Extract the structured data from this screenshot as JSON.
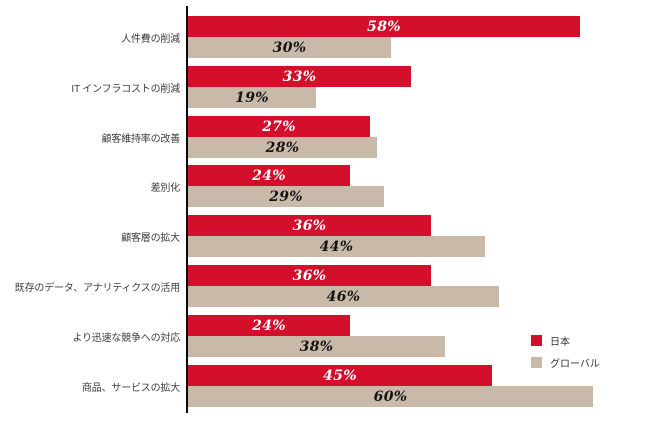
{
  "chart_data": {
    "type": "bar",
    "orientation": "horizontal",
    "title": "",
    "categories": [
      "人件費の削減",
      "IT インフラコストの削減",
      "顧客維持率の改善",
      "差別化",
      "顧客層の拡大",
      "既存のデータ、アナリティクスの活用",
      "より迅速な競争への対応",
      "商品、サービスの拡大"
    ],
    "series": [
      {
        "name": "日本",
        "color": "#d30f2c",
        "label_color": "#ffffff",
        "values": [
          58,
          33,
          27,
          24,
          36,
          36,
          24,
          45
        ]
      },
      {
        "name": "グローバル",
        "color": "#c8b9a8",
        "label_color": "#141414",
        "values": [
          30,
          19,
          28,
          29,
          44,
          46,
          38,
          60
        ]
      }
    ],
    "value_suffix": "%",
    "xlim": [
      0,
      68
    ],
    "grid": false,
    "legend_position": "right-bottom",
    "bar_label_style": "centered-bold-italic",
    "axis_color": "#0a0a0a"
  }
}
